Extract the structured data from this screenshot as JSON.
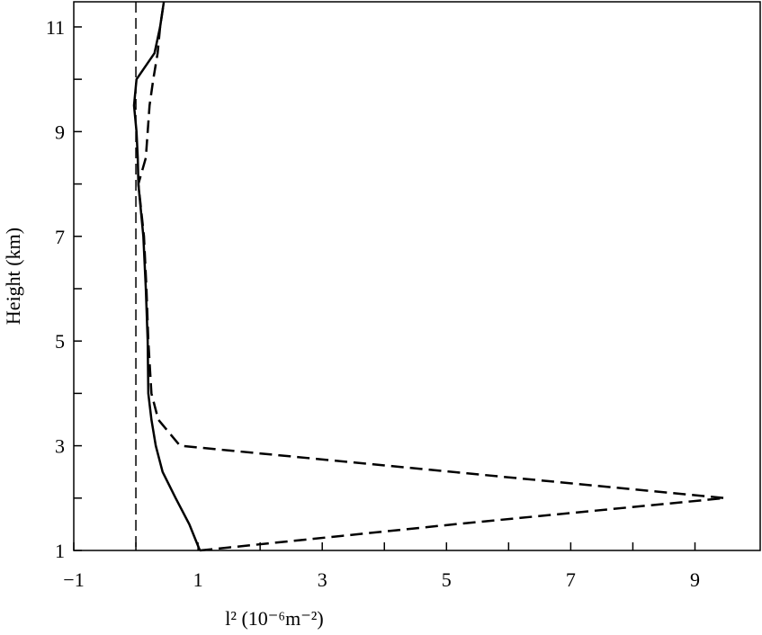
{
  "chart_data": {
    "type": "line",
    "x_label": "l² (10⁻⁶m⁻²)",
    "y_label": "Height (km)",
    "xlim": [
      -1,
      10.05
    ],
    "ylim": [
      1,
      11.48
    ],
    "xticks": [
      {
        "value": -1,
        "label": "−1"
      },
      1,
      3,
      5,
      7,
      9
    ],
    "xminorticks": [
      0,
      2,
      4,
      6,
      8
    ],
    "yticks": [
      1,
      3,
      5,
      7,
      9,
      11
    ],
    "yminorticks": [
      2,
      4,
      6,
      8,
      10
    ],
    "reference_x": 0,
    "color": "#000000",
    "series": [
      {
        "style": "solid",
        "x": [
          1.03,
          0.86,
          0.64,
          0.43,
          0.32,
          0.25,
          0.2,
          0.19,
          0.16,
          0.12,
          0.04,
          0.03,
          0.01,
          -0.03,
          0.01,
          0.3,
          0.39,
          0.45
        ],
        "y": [
          1,
          1.5,
          2,
          2.5,
          3,
          3.5,
          4,
          5,
          6,
          7,
          8,
          8.5,
          9,
          9.5,
          10,
          10.5,
          11,
          11.48
        ]
      },
      {
        "style": "dashed",
        "x": [
          1.03,
          5.13,
          9.48,
          0.71,
          0.36,
          0.25,
          0.2,
          0.17,
          0.13,
          0.04,
          0.16,
          0.19,
          0.22,
          0.28,
          0.35,
          0.39,
          0.45
        ],
        "y": [
          1,
          1.5,
          2,
          3,
          3.5,
          4,
          5,
          6,
          7,
          8,
          8.5,
          9,
          9.5,
          10,
          10.5,
          11,
          11.48
        ]
      }
    ]
  }
}
